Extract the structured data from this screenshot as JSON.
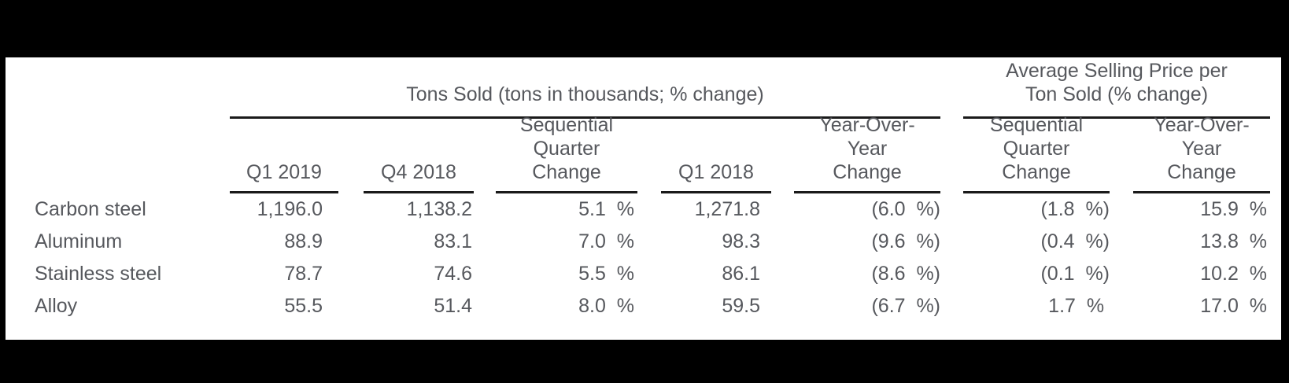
{
  "colors": {
    "canvas_background": "#000000",
    "sheet_background": "#ffffff",
    "text": "#56585d",
    "rule": "#1a1a1a"
  },
  "table": {
    "spanners": [
      {
        "label": "Tons Sold (tons in thousands; % change)"
      },
      {
        "label": "Average Selling Price per\nTon Sold (% change)"
      }
    ],
    "columns": [
      {
        "label": "Q1 2019"
      },
      {
        "label": "Q4 2018"
      },
      {
        "label": "Sequential\nQuarter\nChange"
      },
      {
        "label": "Q1 2018"
      },
      {
        "label": "Year-Over-\nYear\nChange"
      },
      {
        "label": "Sequential\nQuarter\nChange"
      },
      {
        "label": "Year-Over-\nYear\nChange"
      }
    ],
    "rows": [
      {
        "label": "Carbon steel",
        "cells": [
          "1,196.0",
          "1,138.2",
          "5.1  %",
          "1,271.8",
          "(6.0  %)",
          "(1.8  %)",
          "15.9  %"
        ]
      },
      {
        "label": "Aluminum",
        "cells": [
          "88.9",
          "83.1",
          "7.0  %",
          "98.3",
          "(9.6  %)",
          "(0.4  %)",
          "13.8  %"
        ]
      },
      {
        "label": "Stainless steel",
        "cells": [
          "78.7",
          "74.6",
          "5.5  %",
          "86.1",
          "(8.6  %)",
          "(0.1  %)",
          "10.2  %"
        ]
      },
      {
        "label": "Alloy",
        "cells": [
          "55.5",
          "51.4",
          "8.0  %",
          "59.5",
          "(6.7  %)",
          "1.7  % ",
          "17.0  %"
        ]
      }
    ]
  },
  "chart_data": {
    "type": "table",
    "title": "",
    "column_groups": [
      {
        "label": "Tons Sold (tons in thousands; % change)",
        "columns": [
          "Q1 2019",
          "Q4 2018",
          "Sequential Quarter Change",
          "Q1 2018",
          "Year-Over-Year Change"
        ]
      },
      {
        "label": "Average Selling Price per Ton Sold (% change)",
        "columns": [
          "Sequential Quarter Change",
          "Year-Over-Year Change"
        ]
      }
    ],
    "rows": [
      {
        "label": "Carbon steel",
        "tons_q1_2019": 1196.0,
        "tons_q4_2018": 1138.2,
        "tons_sequential_change_pct": 5.1,
        "tons_q1_2018": 1271.8,
        "tons_yoy_change_pct": -6.0,
        "asp_sequential_change_pct": -1.8,
        "asp_yoy_change_pct": 15.9
      },
      {
        "label": "Aluminum",
        "tons_q1_2019": 88.9,
        "tons_q4_2018": 83.1,
        "tons_sequential_change_pct": 7.0,
        "tons_q1_2018": 98.3,
        "tons_yoy_change_pct": -9.6,
        "asp_sequential_change_pct": -0.4,
        "asp_yoy_change_pct": 13.8
      },
      {
        "label": "Stainless steel",
        "tons_q1_2019": 78.7,
        "tons_q4_2018": 74.6,
        "tons_sequential_change_pct": 5.5,
        "tons_q1_2018": 86.1,
        "tons_yoy_change_pct": -8.6,
        "asp_sequential_change_pct": -0.1,
        "asp_yoy_change_pct": 10.2
      },
      {
        "label": "Alloy",
        "tons_q1_2019": 55.5,
        "tons_q4_2018": 51.4,
        "tons_sequential_change_pct": 8.0,
        "tons_q1_2018": 59.5,
        "tons_yoy_change_pct": -6.7,
        "asp_sequential_change_pct": 1.7,
        "asp_yoy_change_pct": 17.0
      }
    ],
    "notes": "Negative percentages shown in parentheses; grid off; white table on black slide background"
  }
}
